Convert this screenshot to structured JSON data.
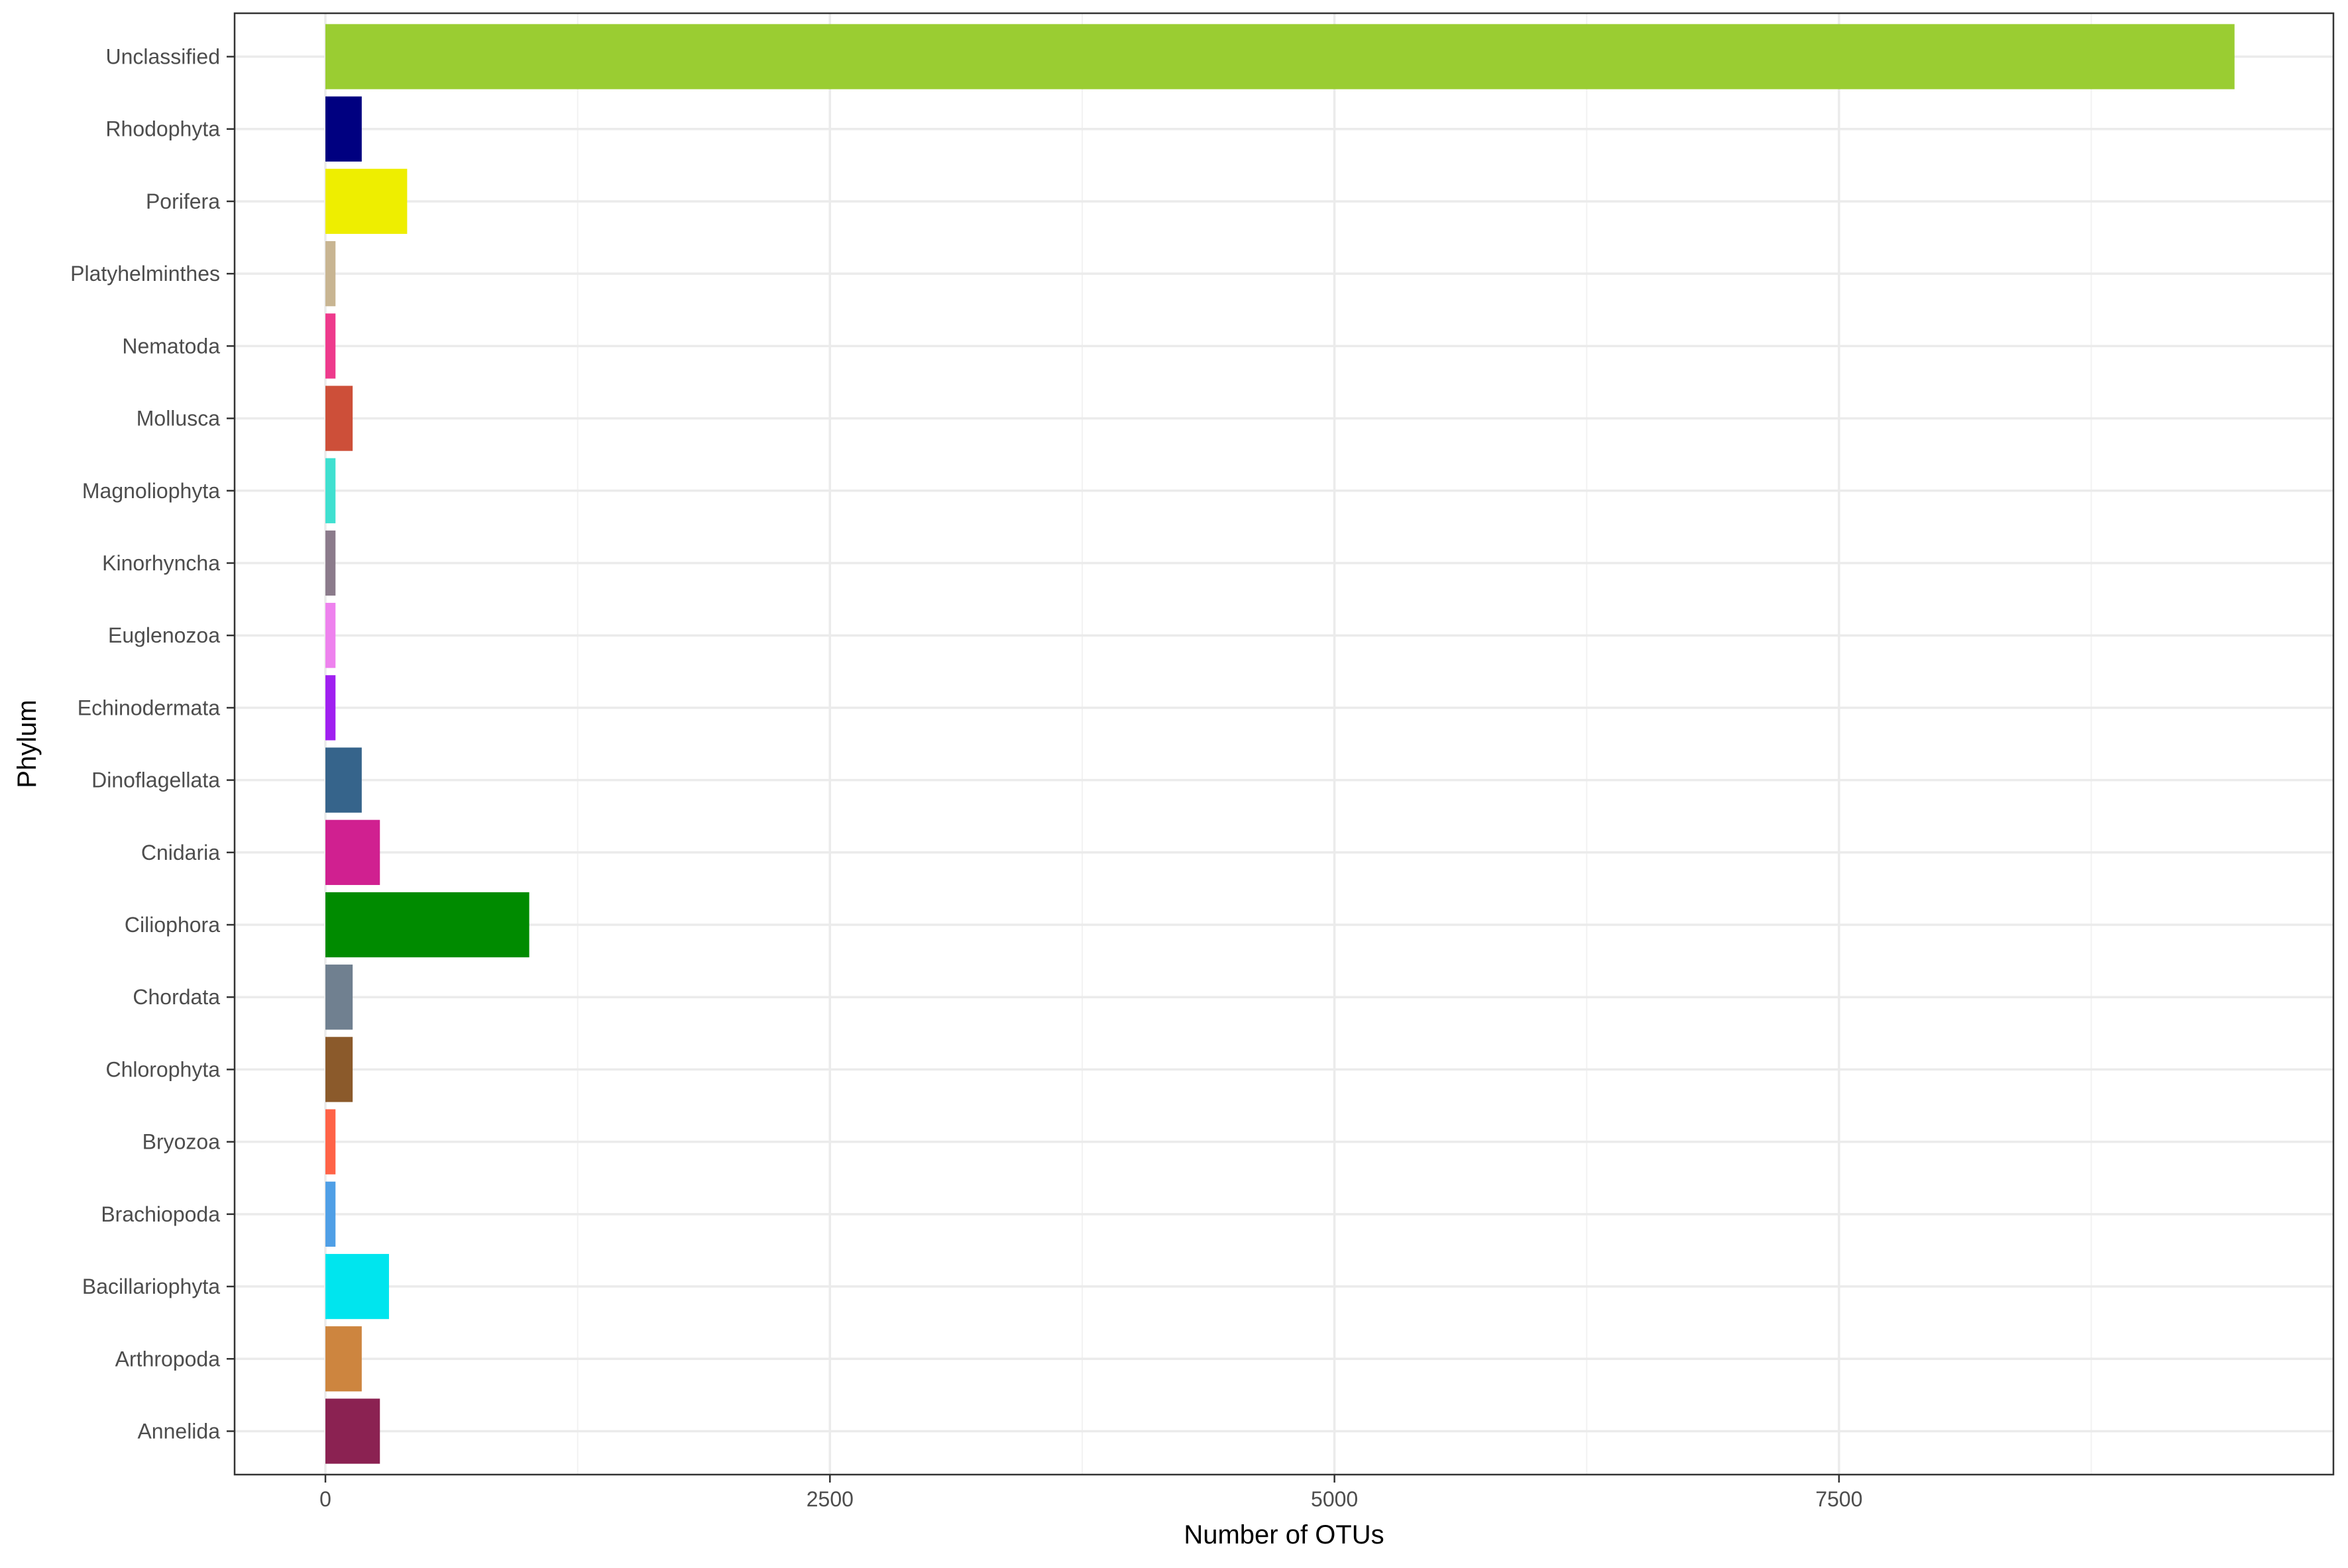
{
  "chart_data": {
    "type": "bar",
    "orientation": "horizontal",
    "title": "",
    "xlabel": "Number of OTUs",
    "ylabel": "Phylum",
    "xlim": [
      -450,
      9950
    ],
    "xticks": [
      0,
      2500,
      5000,
      7500
    ],
    "xtick_labels": [
      "0",
      "2500",
      "5000",
      "7500"
    ],
    "grid": true,
    "legend": "none",
    "categories": [
      "Annelida",
      "Arthropoda",
      "Bacillariophyta",
      "Brachiopoda",
      "Bryozoa",
      "Chlorophyta",
      "Chordata",
      "Ciliophora",
      "Cnidaria",
      "Dinoflagellata",
      "Echinodermata",
      "Euglenozoa",
      "Kinorhyncha",
      "Magnoliophyta",
      "Mollusca",
      "Nematoda",
      "Platyhelminthes",
      "Porifera",
      "Rhodophyta",
      "Unclassified"
    ],
    "values": [
      270,
      180,
      315,
      50,
      50,
      135,
      135,
      1010,
      270,
      180,
      50,
      50,
      50,
      50,
      135,
      50,
      50,
      405,
      180,
      9460
    ],
    "colors": [
      "#8B2252",
      "#CD853F",
      "#00E5EE",
      "#4F9FE6",
      "#FF6347",
      "#8B5A2B",
      "#708090",
      "#008B00",
      "#D02090",
      "#36648B",
      "#A020F0",
      "#EE82EE",
      "#8B7B8B",
      "#40E0D0",
      "#CD4F39",
      "#EE3A8C",
      "#C8B592",
      "#EEEE00",
      "#000080",
      "#9ACD32"
    ]
  }
}
